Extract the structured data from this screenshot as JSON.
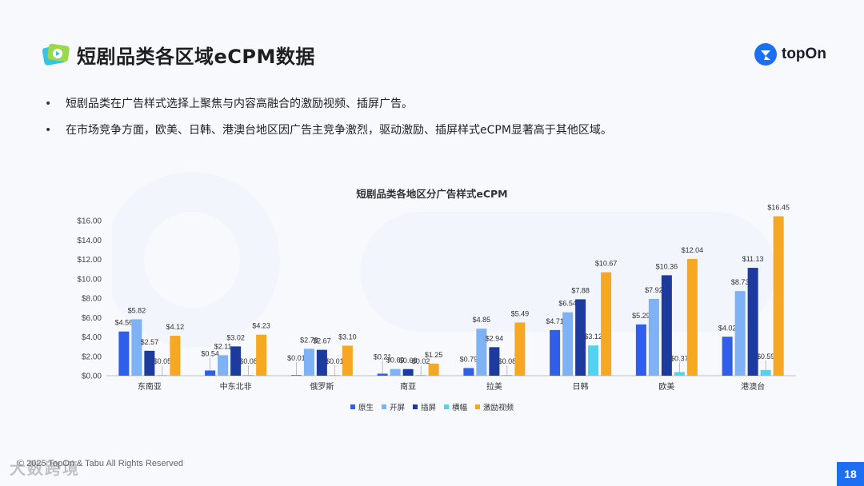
{
  "header": {
    "title": "短剧品类各区域eCPM数据",
    "brand": "topOn"
  },
  "bullets": [
    "短剧品类在广告样式选择上聚焦与内容高融合的激励视频、插屏广告。",
    "在市场竞争方面，欧美、日韩、港澳台地区因广告主竞争激烈，驱动激励、插屏样式eCPM显著高于其他区域。"
  ],
  "footer": {
    "copyright": "© 2025 TopOn & Tabu All Rights Reserved",
    "watermark": "大数跨境",
    "page": "18"
  },
  "colors": {
    "accent": "#1c6ef2"
  },
  "chart_data": {
    "type": "bar",
    "title": "短剧品类各地区分广告样式eCPM",
    "categories": [
      "东南亚",
      "中东北非",
      "俄罗斯",
      "南亚",
      "拉美",
      "日韩",
      "欧美",
      "港澳台"
    ],
    "series": [
      {
        "name": "原生",
        "color": "#2f5fe8",
        "values": [
          4.56,
          0.54,
          0.01,
          0.21,
          0.79,
          4.71,
          5.29,
          4.02
        ]
      },
      {
        "name": "开屏",
        "color": "#7fb1f5",
        "values": [
          5.82,
          2.11,
          2.78,
          0.69,
          4.85,
          6.54,
          7.92,
          8.73
        ]
      },
      {
        "name": "插屏",
        "color": "#1d3b9e",
        "values": [
          2.57,
          3.02,
          2.67,
          0.68,
          2.94,
          7.88,
          10.36,
          11.13
        ]
      },
      {
        "name": "横幅",
        "color": "#4fd3ef",
        "values": [
          0.05,
          0.08,
          0.01,
          0.02,
          0.08,
          3.12,
          0.37,
          0.59
        ]
      },
      {
        "name": "激励视频",
        "color": "#f7a823",
        "values": [
          4.12,
          4.23,
          3.1,
          1.25,
          5.49,
          10.67,
          12.04,
          16.45
        ]
      }
    ],
    "ylim": [
      0,
      16
    ],
    "yticks": [
      "$0.00",
      "$2.00",
      "$4.00",
      "$6.00",
      "$8.00",
      "$10.00",
      "$12.00",
      "$14.00",
      "$16.00"
    ],
    "value_prefix": "$",
    "grid": false,
    "legend": "bottom"
  }
}
